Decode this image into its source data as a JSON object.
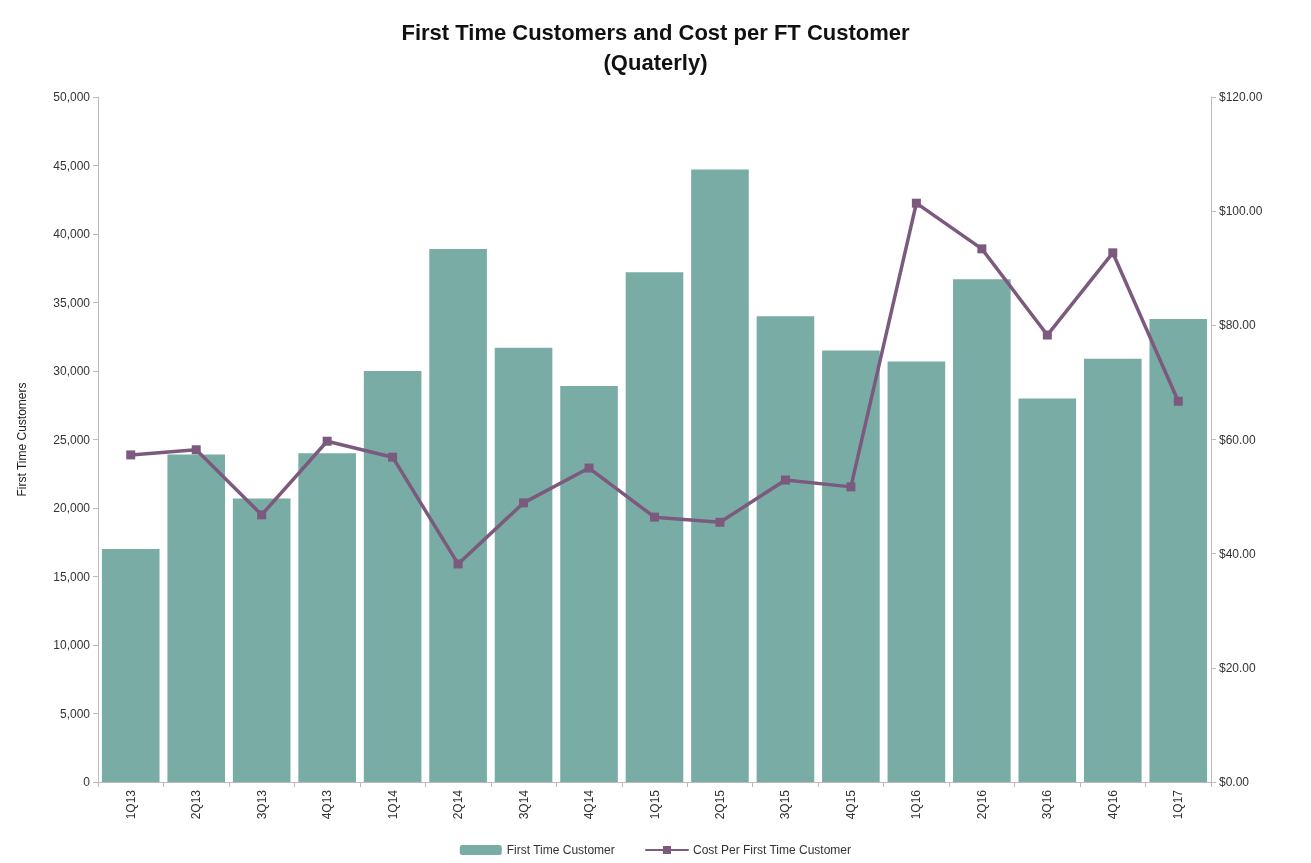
{
  "chart_data": {
    "type": "bar",
    "title": "First Time Customers and Cost per FT Customer\n(Quaterly)",
    "ylabel": "First Time Customers",
    "categories": [
      "1Q13",
      "2Q13",
      "3Q13",
      "4Q13",
      "1Q14",
      "2Q14",
      "3Q14",
      "4Q14",
      "1Q15",
      "2Q15",
      "3Q15",
      "4Q15",
      "1Q16",
      "2Q16",
      "3Q16",
      "4Q16",
      "1Q17"
    ],
    "series": [
      {
        "name": "First Time Customer",
        "color": "#7aaca6",
        "values": [
          17000,
          23900,
          20700,
          24000,
          30000,
          38900,
          31700,
          28900,
          37200,
          44700,
          34000,
          31500,
          30700,
          36700,
          28000,
          30900,
          33800
        ]
      },
      {
        "name": "Cost Per First Time Customer",
        "type": "line",
        "axis": "y2",
        "color": "#7b5a7e",
        "marker": "square",
        "line_style": "solid",
        "values": [
          57.3,
          58.2,
          46.8,
          59.7,
          56.9,
          38.2,
          48.9,
          55.0,
          46.4,
          45.5,
          52.9,
          51.7,
          101.4,
          93.4,
          78.3,
          92.7,
          66.7
        ]
      }
    ],
    "ylim": [
      0,
      50000
    ],
    "yticks": [
      {
        "value": 0,
        "label": "0"
      },
      {
        "value": 5000,
        "label": "5,000"
      },
      {
        "value": 10000,
        "label": "10,000"
      },
      {
        "value": 15000,
        "label": "15,000"
      },
      {
        "value": 20000,
        "label": "20,000"
      },
      {
        "value": 25000,
        "label": "25,000"
      },
      {
        "value": 30000,
        "label": "30,000"
      },
      {
        "value": 35000,
        "label": "35,000"
      },
      {
        "value": 40000,
        "label": "40,000"
      },
      {
        "value": 45000,
        "label": "45,000"
      },
      {
        "value": 50000,
        "label": "50,000"
      }
    ],
    "y2lim": [
      0,
      120
    ],
    "y2ticks": [
      {
        "value": 0,
        "label": "$0.00"
      },
      {
        "value": 20,
        "label": "$20.00"
      },
      {
        "value": 40,
        "label": "$40.00"
      },
      {
        "value": 60,
        "label": "$60.00"
      },
      {
        "value": 80,
        "label": "$80.00"
      },
      {
        "value": 100,
        "label": "$100.00"
      },
      {
        "value": 120,
        "label": "$120.00"
      }
    ],
    "grid": false,
    "legend": "bottom"
  }
}
